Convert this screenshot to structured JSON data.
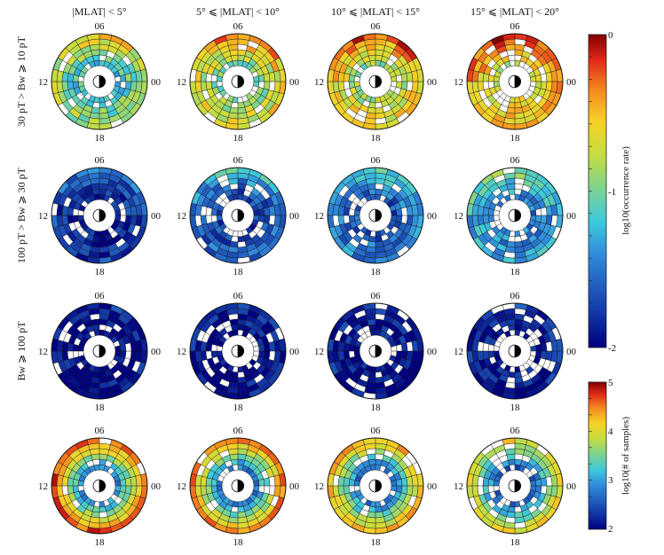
{
  "column_headers": [
    "|MLAT| < 5°",
    "5° ⩽ |MLAT| < 10°",
    "10° ⩽ |MLAT| < 15°",
    "15° ⩽ |MLAT| < 20°"
  ],
  "row_labels": [
    "30 pT > Bw ⩾ 10 pT",
    "100 pT > Bw ⩾ 30 pT",
    "Bw ⩾ 100 pT",
    ""
  ],
  "mlt_labels": {
    "top": "06",
    "left": "12",
    "right": "00",
    "bottom": "18"
  },
  "colorbar_occurrence": {
    "label": "log10(occurrence rate)",
    "ticks": [
      "0",
      "-1",
      "-2"
    ],
    "range": [
      -2,
      0
    ]
  },
  "colorbar_samples": {
    "label": "log10(# of samples)",
    "ticks": [
      "5",
      "4",
      "3",
      "2"
    ],
    "range": [
      2,
      5
    ]
  },
  "chart_data": {
    "type": "heatmap",
    "description_of_grid": "4x4 panels of polar MLT-L dials; 6 radial L-shell rings x 24 MLT sectors each",
    "panels": [
      {
        "row": 0,
        "col": 0,
        "quantity": "occurrence",
        "base": -0.85,
        "dawn_boost": 0.25,
        "inner_drop": 0.35,
        "gap_fraction": 0.15
      },
      {
        "row": 0,
        "col": 1,
        "quantity": "occurrence",
        "base": -0.65,
        "dawn_boost": 0.35,
        "inner_drop": 0.35,
        "gap_fraction": 0.12
      },
      {
        "row": 0,
        "col": 2,
        "quantity": "occurrence",
        "base": -0.55,
        "dawn_boost": 0.35,
        "inner_drop": 0.35,
        "gap_fraction": 0.12
      },
      {
        "row": 0,
        "col": 3,
        "quantity": "occurrence",
        "base": -0.45,
        "dawn_boost": 0.35,
        "inner_drop": 0.3,
        "gap_fraction": 0.18
      },
      {
        "row": 1,
        "col": 0,
        "quantity": "occurrence",
        "base": -1.75,
        "dawn_boost": 0.3,
        "inner_drop": 0.15,
        "gap_fraction": 0.15
      },
      {
        "row": 1,
        "col": 1,
        "quantity": "occurrence",
        "base": -1.55,
        "dawn_boost": 0.35,
        "inner_drop": 0.2,
        "gap_fraction": 0.18
      },
      {
        "row": 1,
        "col": 2,
        "quantity": "occurrence",
        "base": -1.45,
        "dawn_boost": 0.35,
        "inner_drop": 0.2,
        "gap_fraction": 0.18
      },
      {
        "row": 1,
        "col": 3,
        "quantity": "occurrence",
        "base": -1.3,
        "dawn_boost": 0.4,
        "inner_drop": 0.2,
        "gap_fraction": 0.22
      },
      {
        "row": 2,
        "col": 0,
        "quantity": "occurrence",
        "base": -1.93,
        "dawn_boost": 0.1,
        "inner_drop": 0.05,
        "gap_fraction": 0.18
      },
      {
        "row": 2,
        "col": 1,
        "quantity": "occurrence",
        "base": -1.93,
        "dawn_boost": 0.08,
        "inner_drop": 0.05,
        "gap_fraction": 0.22
      },
      {
        "row": 2,
        "col": 2,
        "quantity": "occurrence",
        "base": -1.9,
        "dawn_boost": 0.1,
        "inner_drop": 0.05,
        "gap_fraction": 0.22
      },
      {
        "row": 2,
        "col": 3,
        "quantity": "occurrence",
        "base": -1.88,
        "dawn_boost": 0.1,
        "inner_drop": 0.05,
        "gap_fraction": 0.28
      },
      {
        "row": 3,
        "col": 0,
        "quantity": "samples",
        "outer": 4.65,
        "inner": 2.9,
        "gap_fraction": 0.1
      },
      {
        "row": 3,
        "col": 1,
        "quantity": "samples",
        "outer": 4.45,
        "inner": 2.8,
        "gap_fraction": 0.14
      },
      {
        "row": 3,
        "col": 2,
        "quantity": "samples",
        "outer": 4.3,
        "inner": 2.7,
        "gap_fraction": 0.14
      },
      {
        "row": 3,
        "col": 3,
        "quantity": "samples",
        "outer": 4.05,
        "inner": 2.6,
        "gap_fraction": 0.2
      }
    ]
  }
}
